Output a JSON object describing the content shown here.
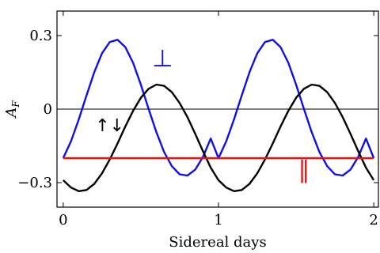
{
  "chart_data": {
    "type": "line",
    "xlabel": "Sidereal days",
    "ylabel_main": "A",
    "ylabel_sub": "F",
    "xlim": [
      -0.04,
      2.03
    ],
    "ylim": [
      -0.4,
      0.4
    ],
    "x_ticks": [
      0,
      1,
      2
    ],
    "x_tick_labels": [
      "0",
      "1",
      "2"
    ],
    "y_ticks": [
      -0.3,
      0,
      0.3
    ],
    "y_tick_labels": [
      "−0.3",
      "0",
      "0.3"
    ],
    "zero_line": true,
    "grid": false,
    "series": [
      {
        "key": "perp",
        "color": "#1010e6",
        "x": [
          0,
          0.05,
          0.1,
          0.15,
          0.2,
          0.25,
          0.3,
          0.35,
          0.4,
          0.45,
          0.5,
          0.55,
          0.6,
          0.65,
          0.7,
          0.75,
          0.8,
          0.85,
          0.9,
          0.95,
          1.0,
          1.05,
          1.1,
          1.15,
          1.2,
          1.25,
          1.3,
          1.35,
          1.4,
          1.45,
          1.5,
          1.55,
          1.6,
          1.65,
          1.7,
          1.75,
          1.8,
          1.85,
          1.9,
          1.95,
          2.0
        ],
        "y": [
          -0.2,
          -0.131,
          -0.042,
          0.056,
          0.151,
          0.228,
          0.274,
          0.283,
          0.253,
          0.189,
          0.1,
          0.001,
          -0.094,
          -0.175,
          -0.233,
          -0.266,
          -0.271,
          -0.247,
          -0.195,
          -0.12,
          -0.2,
          -0.131,
          -0.042,
          0.056,
          0.151,
          0.228,
          0.274,
          0.283,
          0.253,
          0.189,
          0.1,
          0.001,
          -0.094,
          -0.175,
          -0.233,
          -0.266,
          -0.271,
          -0.247,
          -0.195,
          -0.12,
          -0.2
        ]
      },
      {
        "key": "updown",
        "color": "#000000",
        "x": [
          0,
          0.05,
          0.1,
          0.15,
          0.2,
          0.25,
          0.3,
          0.35,
          0.4,
          0.45,
          0.5,
          0.55,
          0.6,
          0.65,
          0.7,
          0.75,
          0.8,
          0.85,
          0.9,
          0.95,
          1.0,
          1.05,
          1.1,
          1.15,
          1.2,
          1.25,
          1.3,
          1.35,
          1.4,
          1.45,
          1.5,
          1.55,
          1.6,
          1.65,
          1.7,
          1.75,
          1.8,
          1.85,
          1.9,
          1.95,
          2.0
        ],
        "y": [
          -0.29,
          -0.32,
          -0.335,
          -0.33,
          -0.305,
          -0.262,
          -0.205,
          -0.14,
          -0.071,
          -0.007,
          0.046,
          0.083,
          0.1,
          0.095,
          0.069,
          0.025,
          -0.033,
          -0.101,
          -0.172,
          -0.239,
          -0.29,
          -0.32,
          -0.335,
          -0.33,
          -0.305,
          -0.262,
          -0.205,
          -0.14,
          -0.071,
          -0.007,
          0.046,
          0.083,
          0.1,
          0.095,
          0.069,
          0.025,
          -0.033,
          -0.101,
          -0.172,
          -0.239,
          -0.29
        ]
      },
      {
        "key": "parallel",
        "color": "#ee1111",
        "x": [
          0,
          2
        ],
        "y": [
          -0.2,
          -0.2
        ]
      }
    ],
    "annotations": [
      {
        "key": "perp",
        "text": "⊥",
        "color": "#1010e6",
        "x": 0.64,
        "y": 0.175
      },
      {
        "key": "updown",
        "text": "↑↓",
        "color": "#000000",
        "x": 0.3,
        "y": -0.09
      },
      {
        "key": "parallel",
        "text": "∥",
        "color": "#ee1111",
        "x": 1.55,
        "y": -0.28
      }
    ]
  }
}
